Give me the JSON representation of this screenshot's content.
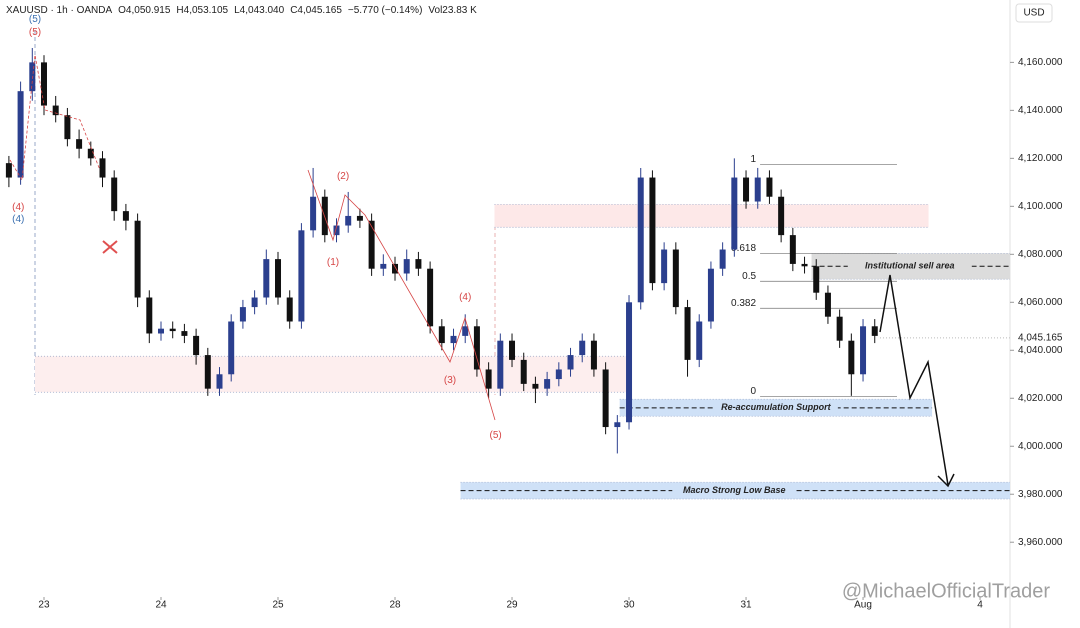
{
  "chart_data": {
    "type": "candlestick",
    "symbol": "XAUUSD · 1h · OANDA",
    "ohlc_readout": [
      "O4,050.915",
      "H4,053.105",
      "L4,043.040",
      "C4,045.165"
    ],
    "change": "−5.770 (−0.14%)",
    "volume": "Vol23.83 K",
    "currency": "USD",
    "watermark": "@MichaelOfficialTrader",
    "up_color": "#2b3f8e",
    "down_color": "#111111",
    "xlim": [
      -0.376,
      8.256
    ],
    "ylim": [
      3938,
      4186
    ],
    "xticks": [
      {
        "value": 0,
        "label": "23"
      },
      {
        "value": 1,
        "label": "24"
      },
      {
        "value": 2,
        "label": "25"
      },
      {
        "value": 3,
        "label": "28"
      },
      {
        "value": 4,
        "label": "29"
      },
      {
        "value": 5,
        "label": "30"
      },
      {
        "value": 6,
        "label": "31"
      },
      {
        "value": 7,
        "label": "Aug"
      },
      {
        "value": 8,
        "label": "4"
      }
    ],
    "yticks": [
      {
        "value": 3960,
        "label": "3,960.000"
      },
      {
        "value": 3980,
        "label": "3,980.000"
      },
      {
        "value": 4000,
        "label": "4,000.000"
      },
      {
        "value": 4020,
        "label": "4,020.000"
      },
      {
        "value": 4040,
        "label": "4,040.000"
      },
      {
        "value": 4060,
        "label": "4,060.000"
      },
      {
        "value": 4080,
        "label": "4,080.000"
      },
      {
        "value": 4100,
        "label": "4,100.000"
      },
      {
        "value": 4120,
        "label": "4,120.000"
      },
      {
        "value": 4140,
        "label": "4,140.000"
      },
      {
        "value": 4160,
        "label": "4,160.000"
      }
    ],
    "last_price": {
      "value": 4045.165,
      "label": "4,045.165"
    },
    "x": [
      -0.3,
      -0.2,
      -0.1,
      0,
      0.1,
      0.2,
      0.3,
      0.4,
      0.5,
      0.6,
      0.7,
      0.8,
      0.9,
      1,
      1.1,
      1.2,
      1.3,
      1.4,
      1.5,
      1.6,
      1.7,
      1.8,
      1.9,
      2,
      2.1,
      2.2,
      2.3,
      2.4,
      2.5,
      2.6,
      2.7,
      2.8,
      2.9,
      3,
      3.1,
      3.2,
      3.3,
      3.4,
      3.5,
      3.6,
      3.7,
      3.8,
      3.9,
      4,
      4.1,
      4.2,
      4.3,
      4.4,
      4.5,
      4.6,
      4.7,
      4.8,
      4.9,
      5,
      5.1,
      5.2,
      5.3,
      5.4,
      5.5,
      5.6,
      5.7,
      5.8,
      5.9,
      6,
      6.1,
      6.2,
      6.3,
      6.4,
      6.5,
      6.6,
      6.7,
      6.8,
      6.9,
      7,
      7.1
    ],
    "candles": [
      [
        4118,
        4121,
        4108,
        4112
      ],
      [
        4112,
        4152,
        4109,
        4148
      ],
      [
        4148,
        4166,
        4144,
        4160
      ],
      [
        4160,
        4163,
        4138,
        4142
      ],
      [
        4142,
        4146,
        4135,
        4138
      ],
      [
        4138,
        4141,
        4125,
        4128
      ],
      [
        4128,
        4132,
        4120,
        4124
      ],
      [
        4124,
        4127,
        4117,
        4120
      ],
      [
        4120,
        4123,
        4108,
        4112
      ],
      [
        4112,
        4115,
        4094,
        4098
      ],
      [
        4098,
        4101,
        4090,
        4094
      ],
      [
        4094,
        4097,
        4058,
        4062
      ],
      [
        4062,
        4065,
        4043,
        4047
      ],
      [
        4047,
        4052,
        4044,
        4049
      ],
      [
        4049,
        4052,
        4045,
        4048
      ],
      [
        4048,
        4051,
        4043,
        4046
      ],
      [
        4046,
        4049,
        4034,
        4038
      ],
      [
        4038,
        4041,
        4021,
        4024
      ],
      [
        4024,
        4033,
        4021,
        4030
      ],
      [
        4030,
        4055,
        4027,
        4052
      ],
      [
        4052,
        4061,
        4049,
        4058
      ],
      [
        4058,
        4065,
        4055,
        4062
      ],
      [
        4062,
        4082,
        4059,
        4078
      ],
      [
        4078,
        4081,
        4059,
        4062
      ],
      [
        4062,
        4065,
        4049,
        4052
      ],
      [
        4052,
        4093,
        4049,
        4090
      ],
      [
        4090,
        4116,
        4087,
        4104
      ],
      [
        4104,
        4107,
        4085,
        4088
      ],
      [
        4088,
        4095,
        4085,
        4092
      ],
      [
        4092,
        4106,
        4089,
        4096
      ],
      [
        4096,
        4099,
        4091,
        4094
      ],
      [
        4094,
        4097,
        4071,
        4074
      ],
      [
        4074,
        4080,
        4071,
        4076
      ],
      [
        4076,
        4079,
        4069,
        4072
      ],
      [
        4072,
        4082,
        4069,
        4078
      ],
      [
        4078,
        4081,
        4071,
        4074
      ],
      [
        4074,
        4077,
        4047,
        4050
      ],
      [
        4050,
        4053,
        4040,
        4043
      ],
      [
        4043,
        4049,
        4040,
        4046
      ],
      [
        4046,
        4055,
        4043,
        4050
      ],
      [
        4050,
        4053,
        4029,
        4032
      ],
      [
        4032,
        4035,
        4020,
        4024
      ],
      [
        4024,
        4047,
        4021,
        4044
      ],
      [
        4044,
        4047,
        4033,
        4036
      ],
      [
        4036,
        4039,
        4023,
        4026
      ],
      [
        4026,
        4029,
        4018,
        4024
      ],
      [
        4024,
        4031,
        4021,
        4028
      ],
      [
        4028,
        4035,
        4025,
        4032
      ],
      [
        4032,
        4041,
        4029,
        4038
      ],
      [
        4038,
        4047,
        4035,
        4044
      ],
      [
        4044,
        4047,
        4029,
        4032
      ],
      [
        4032,
        4035,
        4005,
        4008
      ],
      [
        4008,
        4013,
        3997,
        4010
      ],
      [
        4010,
        4063,
        4007,
        4060
      ],
      [
        4060,
        4116,
        4057,
        4112
      ],
      [
        4112,
        4115,
        4065,
        4068
      ],
      [
        4068,
        4085,
        4065,
        4082
      ],
      [
        4082,
        4085,
        4055,
        4058
      ],
      [
        4058,
        4061,
        4029,
        4036
      ],
      [
        4036,
        4055,
        4033,
        4052
      ],
      [
        4052,
        4077,
        4049,
        4074
      ],
      [
        4074,
        4085,
        4071,
        4082
      ],
      [
        4082,
        4120,
        4079,
        4112
      ],
      [
        4112,
        4115,
        4099,
        4102
      ],
      [
        4102,
        4116,
        4099,
        4112
      ],
      [
        4112,
        4115,
        4101,
        4104
      ],
      [
        4104,
        4107,
        4085,
        4088
      ],
      [
        4088,
        4091,
        4073,
        4076
      ],
      [
        4076,
        4079,
        4072,
        4075
      ],
      [
        4075,
        4078,
        4061,
        4064
      ],
      [
        4064,
        4067,
        4051,
        4054
      ],
      [
        4054,
        4057,
        4041,
        4044
      ],
      [
        4044,
        4047,
        4021,
        4030
      ],
      [
        4030,
        4053,
        4027,
        4050
      ],
      [
        4050,
        4053,
        4043,
        4046
      ]
    ],
    "zones": [
      {
        "x": [
          3.85,
          7.56
        ],
        "ylim": [
          4091.25,
          4100.8
        ],
        "color": "#fde8e8"
      },
      {
        "x": [
          -0.077,
          4.99
        ],
        "ylim": [
          4022.5,
          4037.5
        ],
        "color": "#fdeeee"
      },
      {
        "label": "Re-accumulation Support",
        "x": [
          4.92,
          7.59
        ],
        "ylim": [
          4012.5,
          4019.6
        ],
        "color": "#cfe1f7",
        "line": 4016
      },
      {
        "label": "Macro Strong Low Base",
        "x": [
          3.56,
          8.256
        ],
        "ylim": [
          3978,
          3985
        ],
        "color": "#cfe1f7",
        "line": 3981.5
      },
      {
        "label": "Institutional sell area",
        "x": [
          6.56,
          8.256
        ],
        "ylim": [
          4069.6,
          4080.4
        ],
        "color": "#dcdcdc",
        "line": 4075
      }
    ],
    "fib": {
      "x": [
        6.12,
        7.29
      ],
      "levels": [
        {
          "label": "1",
          "value": 4117.5
        },
        {
          "label": "0.618",
          "value": 4080.4
        },
        {
          "label": "0.5",
          "value": 4068.75
        },
        {
          "label": "0.382",
          "value": 4057.5
        },
        {
          "label": "0",
          "value": 4020.8
        }
      ]
    },
    "wave_labels": [
      {
        "label": "(5)",
        "x": -0.077,
        "value": 4177.9,
        "color": "#3a6fb0"
      },
      {
        "label": "(5)",
        "x": -0.077,
        "value": 4172.5,
        "color": "#d64545"
      },
      {
        "label": "(4)",
        "x": -0.22,
        "value": 4099.6,
        "color": "#d64545"
      },
      {
        "label": "(4)",
        "x": -0.22,
        "value": 4094.6,
        "color": "#3a6fb0"
      },
      {
        "label": "(2)",
        "x": 2.556,
        "value": 4112.5,
        "color": "#d64545"
      },
      {
        "label": "(1)",
        "x": 2.47,
        "value": 4076.7,
        "color": "#d64545"
      },
      {
        "label": "(4)",
        "x": 3.6,
        "value": 4062,
        "color": "#d64545"
      },
      {
        "label": "(3)",
        "x": 3.47,
        "value": 4027.5,
        "color": "#d64545"
      },
      {
        "label": "(5)",
        "x": 3.86,
        "value": 4004.6,
        "color": "#d64545"
      }
    ]
  }
}
